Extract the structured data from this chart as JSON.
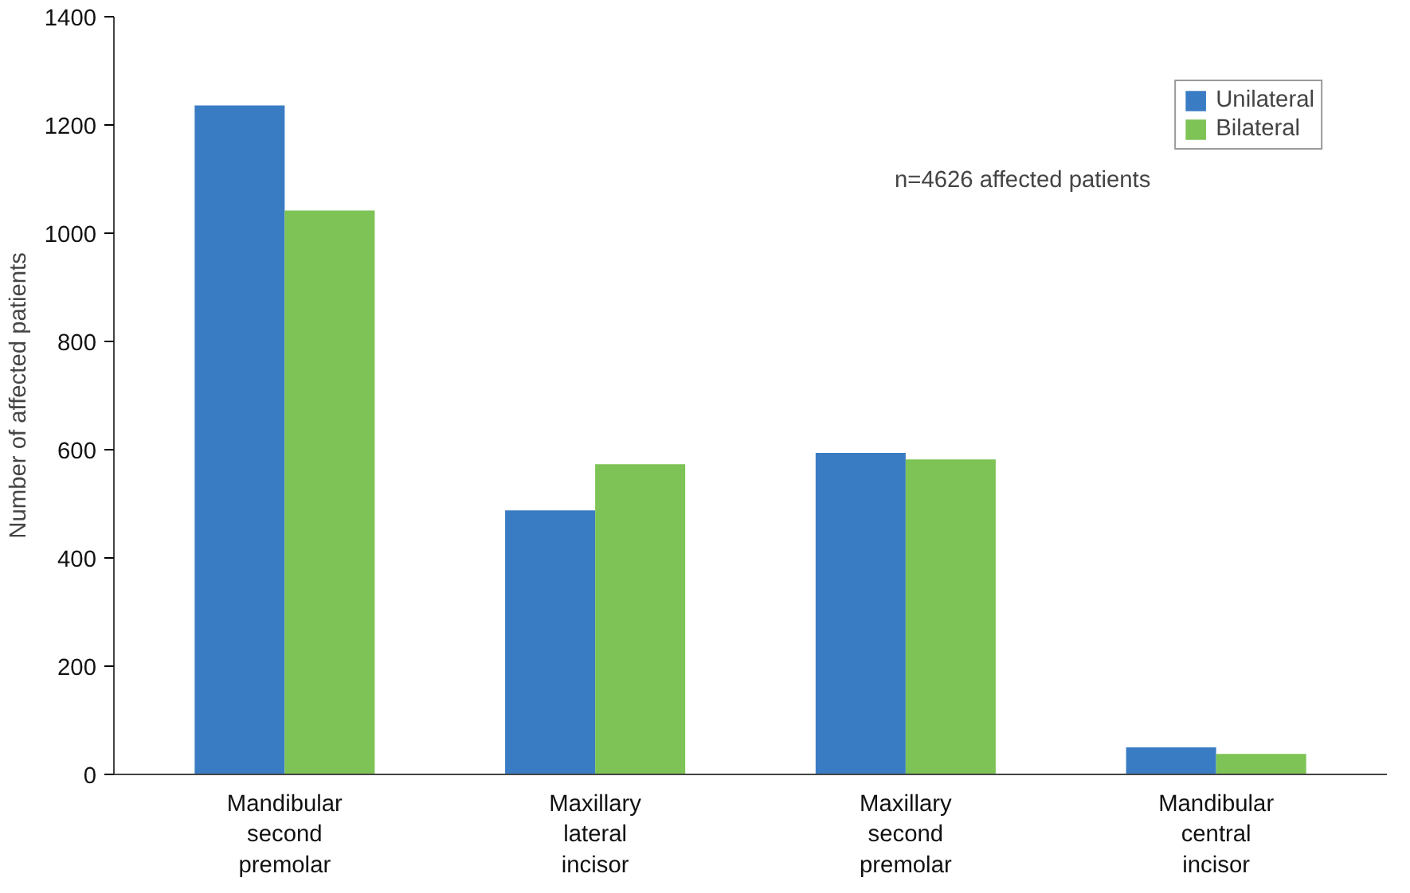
{
  "chart_data": {
    "type": "bar",
    "ylabel": "Number of affected patients",
    "categories": [
      "Mandibular second premolar",
      "Maxillary lateral incisor",
      "Maxillary second premolar",
      "Mandibular central incisor"
    ],
    "series": [
      {
        "name": "Unilateral",
        "color": "#3a7cc4",
        "values": [
          1236,
          488,
          594,
          50
        ]
      },
      {
        "name": "Bilateral",
        "color": "#7dc355",
        "values": [
          1042,
          573,
          582,
          38
        ]
      }
    ],
    "ylim": [
      0,
      1400
    ],
    "yticks": [
      0,
      200,
      400,
      600,
      800,
      1000,
      1200,
      1400
    ],
    "grid": false,
    "legend": "top right",
    "annotations": [
      "n=4626 affected patients"
    ]
  }
}
